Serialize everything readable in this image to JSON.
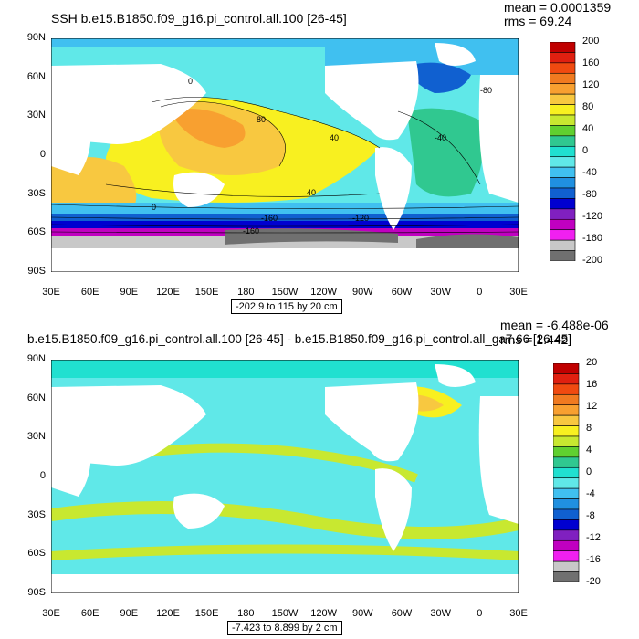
{
  "top": {
    "title": "SSH b.e15.B1850.f09_g16.pi_control.all.100 [26-45]",
    "mean": "mean = 0.0001359",
    "rms": "rms = 69.24",
    "range": "-202.9 to 115 by 20 cm",
    "lat_labels": [
      "90N",
      "60N",
      "30N",
      "0",
      "30S",
      "60S",
      "90S"
    ],
    "lon_labels": [
      "30E",
      "60E",
      "90E",
      "120E",
      "150E",
      "180",
      "150W",
      "120W",
      "90W",
      "60W",
      "30W",
      "0",
      "30E"
    ],
    "colorbar": {
      "labels": [
        "200",
        "160",
        "120",
        "80",
        "40",
        "0",
        "-40",
        "-80",
        "-120",
        "-160",
        "-200"
      ],
      "colors": [
        "#c00000",
        "#e02010",
        "#f04a10",
        "#f07a20",
        "#f8a030",
        "#f8c840",
        "#f8f020",
        "#c8e830",
        "#60d030",
        "#30c890",
        "#20e0d0",
        "#60e8e8",
        "#40c0f0",
        "#2090e0",
        "#1060d0",
        "#0000d0",
        "#8020c0",
        "#c000c0",
        "#f020f0",
        "#c8c8c8",
        "#707070"
      ]
    },
    "contour_labels": [
      "0",
      "40",
      "80",
      "-40",
      "-80",
      "-120",
      "-160"
    ]
  },
  "bottom": {
    "title": "b.e15.B1850.f09_g16.pi_control.all.100 [26-45] - b.e15.B1850.f09_g16.pi_control.all_ga7.66 [26-45]",
    "mean": "mean = -6.488e-06",
    "rms": "rms = 1.442",
    "range": "-7.423 to 8.899 by 2 cm",
    "lat_labels": [
      "90N",
      "60N",
      "30N",
      "0",
      "30S",
      "60S",
      "90S"
    ],
    "lon_labels": [
      "30E",
      "60E",
      "90E",
      "120E",
      "150E",
      "180",
      "150W",
      "120W",
      "90W",
      "60W",
      "30W",
      "0",
      "30E"
    ],
    "colorbar": {
      "labels": [
        "20",
        "16",
        "12",
        "8",
        "4",
        "0",
        "-4",
        "-8",
        "-12",
        "-16",
        "-20"
      ],
      "colors": [
        "#c00000",
        "#e02010",
        "#f04a10",
        "#f07a20",
        "#f8a030",
        "#f8c840",
        "#f8f020",
        "#c8e830",
        "#60d030",
        "#30c890",
        "#20e0d0",
        "#60e8e8",
        "#40c0f0",
        "#2090e0",
        "#1060d0",
        "#0000d0",
        "#8020c0",
        "#c000c0",
        "#f020f0",
        "#c8c8c8",
        "#707070"
      ]
    }
  }
}
